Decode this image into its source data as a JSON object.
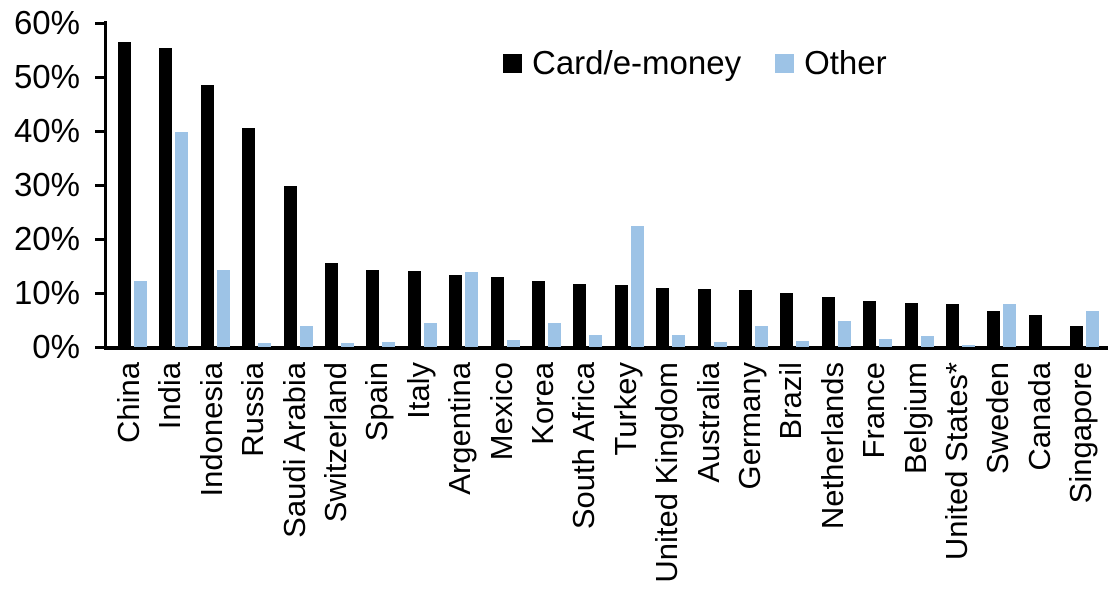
{
  "chart_data": {
    "type": "bar",
    "title": "",
    "xlabel": "",
    "ylabel": "",
    "ylim": [
      0,
      60
    ],
    "yticks": [
      0,
      10,
      20,
      30,
      40,
      50,
      60
    ],
    "ytick_labels": [
      "0%",
      "10%",
      "20%",
      "30%",
      "40%",
      "50%",
      "60%"
    ],
    "grid": false,
    "legend_position": "top-center",
    "categories": [
      "China",
      "India",
      "Indonesia",
      "Russia",
      "Saudi Arabia",
      "Switzerland",
      "Spain",
      "Italy",
      "Argentina",
      "Mexico",
      "Korea",
      "South Africa",
      "Turkey",
      "United Kingdom",
      "Australia",
      "Germany",
      "Brazil",
      "Netherlands",
      "France",
      "Belgium",
      "United States*",
      "Sweden",
      "Canada",
      "Singapore"
    ],
    "series": [
      {
        "name": "Card/e-money",
        "color": "#000000",
        "values": [
          56.5,
          55.3,
          48.5,
          40.5,
          29.8,
          15.5,
          14.2,
          14.0,
          13.3,
          12.9,
          12.2,
          11.7,
          11.5,
          11.0,
          10.8,
          10.6,
          10.0,
          9.3,
          8.6,
          8.2,
          8.0,
          6.6,
          6.0,
          3.9
        ]
      },
      {
        "name": "Other",
        "color": "#9dc3e6",
        "values": [
          12.3,
          39.8,
          14.3,
          0.8,
          3.8,
          0.8,
          1.0,
          4.5,
          13.8,
          1.3,
          4.4,
          2.2,
          22.5,
          2.3,
          0.9,
          3.9,
          1.2,
          4.8,
          1.5,
          2.0,
          0.3,
          8.0,
          0.0,
          6.6
        ]
      }
    ]
  }
}
